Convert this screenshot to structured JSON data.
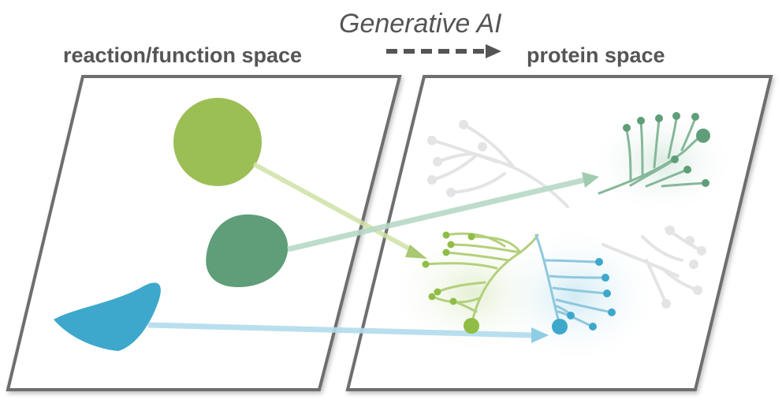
{
  "title": "Generative AI",
  "left_label": "reaction/function space",
  "right_label": "protein space",
  "colors": {
    "frame": "#6e6e6e",
    "light_green": "#9cbf55",
    "dark_green": "#5f9e78",
    "blue": "#3ea8cc",
    "faint_tree": "#e4e4e4",
    "label": "#555555"
  },
  "icons": {
    "arrow": "dashed-arrow-icon",
    "tree": "branching-tree-icon"
  }
}
